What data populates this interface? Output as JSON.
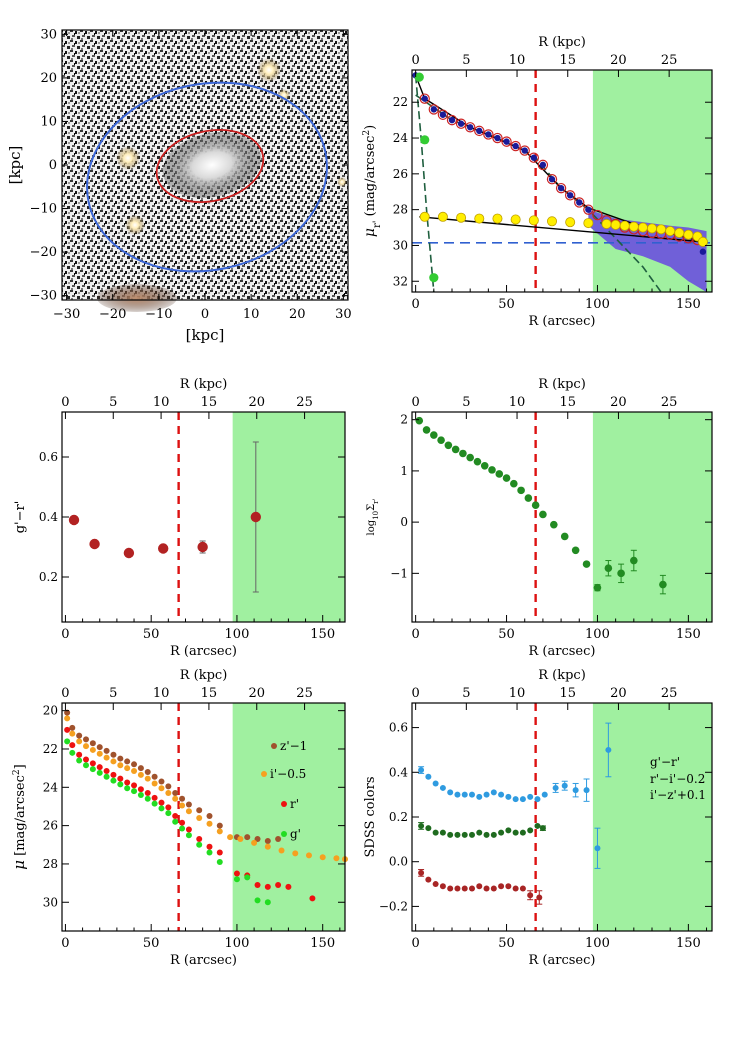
{
  "figure": {
    "label_kpc_axis": "R (kpc)",
    "label_arcsec_axis": "R (arcsec)"
  },
  "chart_data": [
    {
      "id": "image-panel",
      "type": "image",
      "description_label": "residual galaxy image",
      "xlabel": "[kpc]",
      "ylabel": "[kpc]",
      "xlim": [
        -31,
        31
      ],
      "ylim": [
        -31,
        31
      ],
      "xticks": [
        -30,
        -20,
        -10,
        0,
        10,
        20,
        30
      ],
      "yticks": [
        -30,
        -20,
        -10,
        0,
        10,
        20,
        30
      ],
      "colors": {
        "outer_ellipse": "#3a66d8",
        "inner_ellipse": "#cc1f1f"
      }
    },
    {
      "id": "surface-brightness",
      "type": "scatter",
      "xlabel": "R (arcsec)",
      "ylabel": "μ_r' (mag/arcsec²)",
      "ylabel_main": "μ",
      "ylabel_sub": "r'",
      "ylabel_rest": " (mag/arcsec",
      "ylabel_sup": "2",
      "ylabel_close": ")",
      "top_label": "R (kpc)",
      "xlim": [
        -2,
        163
      ],
      "ylim": [
        32.6,
        20.2
      ],
      "xticks": [
        0,
        50,
        100,
        150
      ],
      "yticks": [
        22,
        24,
        26,
        28,
        30,
        32
      ],
      "top_xticks": [
        0,
        5,
        10,
        15,
        20,
        25
      ],
      "kpc_per_arcsec": 0.1793,
      "green_region_from": 97.5,
      "red_dashed_x": 66,
      "blue_dashed_y": 29.85,
      "series": [
        {
          "name": "observed",
          "color": "#cc2222",
          "x": [
            5,
            10,
            15,
            20,
            25,
            30,
            35,
            40,
            45,
            50,
            55,
            60,
            65,
            70,
            75,
            80,
            85,
            90,
            95,
            100,
            105,
            110,
            115,
            120,
            125,
            130,
            135,
            140,
            145,
            150,
            155
          ],
          "y": [
            21.8,
            22.4,
            22.7,
            23.0,
            23.2,
            23.4,
            23.6,
            23.8,
            24.0,
            24.2,
            24.45,
            24.7,
            25.1,
            25.5,
            26.3,
            26.8,
            27.2,
            27.6,
            28.0,
            28.3,
            28.6,
            28.8,
            29.0,
            29.1,
            29.2,
            29.3,
            29.35,
            29.4,
            29.5,
            29.6,
            29.7
          ]
        },
        {
          "name": "model",
          "color": "#1a1a99",
          "x": [
            0,
            5,
            10,
            15,
            20,
            25,
            30,
            35,
            40,
            45,
            50,
            55,
            60,
            65,
            70,
            75,
            80,
            85,
            90,
            95,
            158
          ],
          "y": [
            20.5,
            21.8,
            22.4,
            22.7,
            23.0,
            23.2,
            23.4,
            23.6,
            23.8,
            24.0,
            24.2,
            24.45,
            24.7,
            25.1,
            25.5,
            26.3,
            26.8,
            27.2,
            27.6,
            28.0,
            30.35
          ]
        },
        {
          "name": "halo",
          "color": "#ffee00",
          "x": [
            5,
            15,
            25,
            35,
            45,
            55,
            65,
            75,
            85,
            95,
            105,
            110,
            115,
            120,
            125,
            130,
            135,
            140,
            145,
            150,
            155,
            158
          ],
          "y": [
            28.4,
            28.4,
            28.45,
            28.5,
            28.5,
            28.55,
            28.6,
            28.65,
            28.7,
            28.75,
            28.8,
            28.85,
            28.9,
            28.95,
            29.0,
            29.05,
            29.1,
            29.2,
            29.3,
            29.4,
            29.5,
            29.8
          ]
        },
        {
          "name": "bulge",
          "color": "#33cc33",
          "x": [
            2,
            5,
            10
          ],
          "y": [
            20.6,
            24.1,
            31.8
          ]
        }
      ]
    },
    {
      "id": "g-r-color",
      "type": "scatter",
      "xlabel": "R (arcsec)",
      "ylabel": "g'−r'",
      "top_label": "R (kpc)",
      "xlim": [
        -2,
        163
      ],
      "ylim": [
        0.05,
        0.75
      ],
      "xticks": [
        0,
        50,
        100,
        150
      ],
      "yticks": [
        0.2,
        0.4,
        0.6
      ],
      "top_xticks": [
        0,
        5,
        10,
        15,
        20,
        25
      ],
      "kpc_per_arcsec": 0.1793,
      "green_region_from": 97.5,
      "red_dashed_x": 66,
      "series": [
        {
          "name": "g-r",
          "color": "#b22222",
          "x": [
            5,
            17,
            37,
            57,
            80,
            111
          ],
          "y": [
            0.39,
            0.31,
            0.28,
            0.295,
            0.3,
            0.4
          ],
          "err": [
            0,
            0,
            0,
            0,
            0.02,
            0.25
          ]
        }
      ]
    },
    {
      "id": "log-sigma",
      "type": "scatter",
      "xlabel": "R (arcsec)",
      "ylabel": "log10 Σ_r'",
      "ylabel_main": "log",
      "ylabel_sub": "10",
      "ylabel_sigma": "Σ",
      "ylabel_sub2": "r'",
      "top_label": "R (kpc)",
      "xlim": [
        -2,
        163
      ],
      "ylim": [
        -1.95,
        2.15
      ],
      "xticks": [
        0,
        50,
        100,
        150
      ],
      "yticks": [
        -1,
        0,
        1,
        2
      ],
      "top_xticks": [
        0,
        5,
        10,
        15,
        20,
        25
      ],
      "kpc_per_arcsec": 0.1793,
      "green_region_from": 97.5,
      "red_dashed_x": 66,
      "series": [
        {
          "name": "log-sigma",
          "color": "#228b22",
          "x": [
            2,
            6,
            10,
            14,
            18,
            22,
            26,
            30,
            34,
            38,
            42,
            46,
            50,
            54,
            58,
            62,
            66,
            70,
            76,
            82,
            88,
            94,
            100,
            106,
            113,
            120,
            136
          ],
          "y": [
            1.98,
            1.8,
            1.7,
            1.6,
            1.5,
            1.42,
            1.34,
            1.26,
            1.18,
            1.1,
            1.02,
            0.94,
            0.86,
            0.75,
            0.62,
            0.47,
            0.33,
            0.15,
            -0.05,
            -0.28,
            -0.55,
            -0.82,
            -1.28,
            -0.9,
            -1.0,
            -0.75,
            -1.22
          ],
          "err": [
            0,
            0,
            0,
            0,
            0,
            0,
            0,
            0,
            0,
            0,
            0,
            0,
            0,
            0,
            0,
            0,
            0,
            0,
            0,
            0,
            0,
            0,
            0.06,
            0.15,
            0.18,
            0.2,
            0.18
          ]
        }
      ]
    },
    {
      "id": "multi-band",
      "type": "scatter",
      "xlabel": "R (arcsec)",
      "ylabel": "μ [mag/arcsec²]",
      "ylabel_main": "μ",
      "ylabel_rest": " [mag/arcsec",
      "ylabel_sup": "2",
      "ylabel_close": "]",
      "top_label": "R (kpc)",
      "xlim": [
        -2,
        163
      ],
      "ylim": [
        31.5,
        19.6
      ],
      "xticks": [
        0,
        50,
        100,
        150
      ],
      "yticks": [
        20,
        22,
        24,
        26,
        28,
        30
      ],
      "top_xticks": [
        0,
        5,
        10,
        15,
        20,
        25
      ],
      "kpc_per_arcsec": 0.1793,
      "green_region_from": 97.5,
      "red_dashed_x": 66,
      "legend": [
        "z'−1",
        "i'−0.5",
        "r'",
        "g'"
      ],
      "series": [
        {
          "name": "z'−1",
          "color": "#a0522d",
          "x": [
            1,
            4,
            8,
            12,
            16,
            20,
            24,
            28,
            32,
            36,
            40,
            44,
            48,
            52,
            56,
            60,
            64,
            68,
            72,
            78,
            84,
            90,
            100,
            106,
            112,
            118,
            124
          ],
          "y": [
            20.1,
            20.9,
            21.3,
            21.5,
            21.7,
            21.9,
            22.1,
            22.3,
            22.5,
            22.65,
            22.8,
            23.0,
            23.2,
            23.45,
            23.7,
            23.95,
            24.3,
            24.6,
            24.9,
            25.2,
            25.5,
            26.0,
            26.6,
            26.6,
            26.7,
            26.8,
            26.7
          ]
        },
        {
          "name": "i'−0.5",
          "color": "#f5a020",
          "x": [
            1,
            4,
            8,
            12,
            16,
            20,
            24,
            28,
            32,
            36,
            40,
            44,
            48,
            52,
            56,
            60,
            64,
            68,
            72,
            78,
            84,
            90,
            96,
            102,
            110,
            118,
            126,
            134,
            142,
            150,
            158,
            163
          ],
          "y": [
            20.4,
            21.2,
            21.6,
            21.85,
            22.05,
            22.25,
            22.45,
            22.65,
            22.85,
            23.0,
            23.15,
            23.35,
            23.55,
            23.8,
            24.05,
            24.3,
            24.6,
            24.95,
            25.25,
            25.6,
            25.9,
            26.3,
            26.6,
            26.7,
            26.9,
            27.1,
            27.3,
            27.45,
            27.55,
            27.65,
            27.7,
            27.75
          ]
        },
        {
          "name": "r'",
          "color": "#ee1111",
          "x": [
            1,
            4,
            8,
            12,
            16,
            20,
            24,
            28,
            32,
            36,
            40,
            44,
            48,
            52,
            56,
            60,
            64,
            68,
            72,
            78,
            84,
            90,
            100,
            106,
            112,
            118,
            124,
            130,
            144
          ],
          "y": [
            21.0,
            21.8,
            22.3,
            22.55,
            22.75,
            22.95,
            23.15,
            23.35,
            23.55,
            23.75,
            23.9,
            24.1,
            24.3,
            24.55,
            24.8,
            25.05,
            25.5,
            25.85,
            26.2,
            26.7,
            27.1,
            27.4,
            28.5,
            28.6,
            29.1,
            29.2,
            29.1,
            29.2,
            29.8
          ]
        },
        {
          "name": "g'",
          "color": "#22dd22",
          "x": [
            1,
            4,
            8,
            12,
            16,
            20,
            24,
            28,
            32,
            36,
            40,
            44,
            48,
            52,
            56,
            60,
            64,
            68,
            72,
            78,
            84,
            90,
            100,
            106,
            112,
            118
          ],
          "y": [
            21.6,
            22.2,
            22.6,
            22.85,
            23.05,
            23.25,
            23.45,
            23.65,
            23.85,
            24.05,
            24.2,
            24.4,
            24.6,
            24.85,
            25.1,
            25.35,
            25.8,
            26.15,
            26.5,
            27.0,
            27.4,
            27.9,
            28.8,
            28.7,
            29.9,
            30.0
          ]
        }
      ]
    },
    {
      "id": "sdss-colors",
      "type": "scatter",
      "xlabel": "R (arcsec)",
      "ylabel": "SDSS colors",
      "top_label": "R (kpc)",
      "xlim": [
        -2,
        163
      ],
      "ylim": [
        -0.31,
        0.71
      ],
      "xticks": [
        0,
        50,
        100,
        150
      ],
      "yticks": [
        -0.2,
        0.0,
        0.2,
        0.4,
        0.6
      ],
      "top_xticks": [
        0,
        5,
        10,
        15,
        20,
        25
      ],
      "kpc_per_arcsec": 0.1793,
      "green_region_from": 97.5,
      "red_dashed_x": 66,
      "legend": [
        "g'−r'",
        "r'−i'−0.2",
        "i'−z'+0.1"
      ],
      "series": [
        {
          "name": "g'−r'",
          "color": "#2f9be0",
          "x": [
            3,
            7,
            11,
            15,
            19,
            23,
            27,
            31,
            35,
            39,
            43,
            47,
            51,
            55,
            59,
            63,
            67,
            71,
            77,
            82,
            88,
            94,
            100,
            106
          ],
          "y": [
            0.41,
            0.38,
            0.35,
            0.33,
            0.31,
            0.3,
            0.3,
            0.3,
            0.29,
            0.3,
            0.31,
            0.3,
            0.29,
            0.28,
            0.28,
            0.29,
            0.28,
            0.3,
            0.33,
            0.34,
            0.32,
            0.32,
            0.06,
            0.5
          ],
          "err": [
            0.015,
            0,
            0,
            0,
            0,
            0,
            0,
            0,
            0,
            0,
            0,
            0,
            0,
            0,
            0,
            0,
            0,
            0,
            0.02,
            0.02,
            0.03,
            0.05,
            0.09,
            0.12
          ]
        },
        {
          "name": "r'−i'−0.2",
          "color": "#1f6b1f",
          "x": [
            3,
            7,
            11,
            15,
            19,
            23,
            27,
            31,
            35,
            39,
            43,
            47,
            51,
            55,
            59,
            63,
            67,
            70
          ],
          "y": [
            0.16,
            0.15,
            0.13,
            0.13,
            0.12,
            0.12,
            0.12,
            0.12,
            0.13,
            0.12,
            0.12,
            0.13,
            0.14,
            0.13,
            0.13,
            0.14,
            0.16,
            0.15
          ],
          "err": [
            0.015,
            0,
            0,
            0,
            0,
            0,
            0,
            0,
            0,
            0,
            0,
            0,
            0,
            0,
            0,
            0,
            0,
            0.01
          ]
        },
        {
          "name": "i'−z'+0.1",
          "color": "#a82525",
          "x": [
            3,
            7,
            11,
            15,
            19,
            23,
            27,
            31,
            35,
            39,
            43,
            47,
            51,
            55,
            59,
            63,
            68
          ],
          "y": [
            -0.05,
            -0.08,
            -0.1,
            -0.11,
            -0.12,
            -0.12,
            -0.12,
            -0.12,
            -0.11,
            -0.12,
            -0.12,
            -0.11,
            -0.11,
            -0.12,
            -0.12,
            -0.15,
            -0.16
          ],
          "err": [
            0.015,
            0,
            0,
            0,
            0,
            0,
            0,
            0,
            0,
            0,
            0,
            0,
            0,
            0,
            0,
            0.02,
            0.03
          ]
        }
      ]
    }
  ]
}
